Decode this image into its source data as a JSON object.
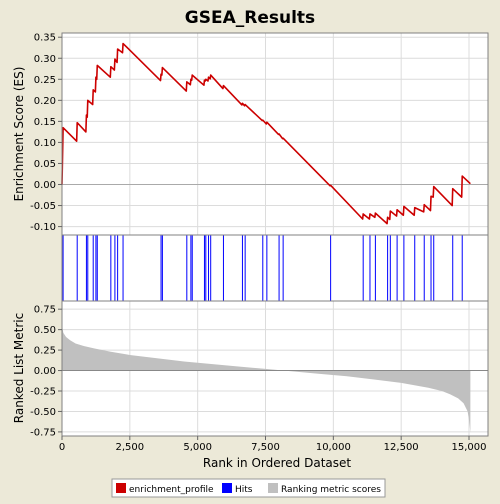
{
  "chart_data": {
    "type": "line",
    "title": "GSEA_Results",
    "xlabel": "Rank in Ordered Dataset",
    "panels": {
      "enrichment": {
        "ylabel": "Enrichment Score (ES)",
        "ylim": [
          -0.12,
          0.36
        ],
        "yticks": [
          -0.1,
          -0.05,
          0.0,
          0.05,
          0.1,
          0.15,
          0.2,
          0.25,
          0.3,
          0.35
        ],
        "ytick_labels": [
          "-0.10",
          "-0.05",
          "0.00",
          "0.05",
          "0.10",
          "0.15",
          "0.20",
          "0.25",
          "0.30",
          "0.35"
        ],
        "grid": true
      },
      "hits": {},
      "ranked": {
        "ylabel": "Ranked List Metric",
        "ylim": [
          -0.8,
          0.85
        ],
        "yticks": [
          -0.75,
          -0.5,
          -0.25,
          0.0,
          0.25,
          0.5,
          0.75
        ],
        "ytick_labels": [
          "-0.75",
          "-0.50",
          "-0.25",
          "0.00",
          "0.25",
          "0.50",
          "0.75"
        ],
        "grid": true
      }
    },
    "xlim": [
      0,
      15700
    ],
    "xticks": [
      0,
      2500,
      5000,
      7500,
      10000,
      12500,
      15000
    ],
    "xtick_labels": [
      "0",
      "2,500",
      "5,000",
      "7,500",
      "10,000",
      "12,500",
      "15,000"
    ],
    "hits": [
      40,
      560,
      900,
      950,
      1150,
      1250,
      1300,
      1800,
      1950,
      2050,
      2250,
      3650,
      3700,
      4600,
      4750,
      4800,
      5250,
      5300,
      5400,
      5480,
      5950,
      6650,
      6750,
      7400,
      7550,
      8000,
      8150,
      9900,
      11100,
      11350,
      11550,
      12000,
      12100,
      12350,
      12600,
      13000,
      13350,
      13600,
      13700,
      14400,
      14750
    ],
    "series": [
      {
        "name": "enrichment_profile",
        "color": "#cc0000",
        "x": [
          0,
          40,
          540,
          560,
          880,
          900,
          930,
          950,
          1130,
          1150,
          1230,
          1250,
          1280,
          1300,
          1780,
          1800,
          1930,
          1950,
          2030,
          2050,
          2230,
          2250,
          3630,
          3650,
          3680,
          3700,
          4580,
          4600,
          4730,
          4750,
          4780,
          4800,
          5230,
          5250,
          5280,
          5300,
          5380,
          5400,
          5460,
          5480,
          5930,
          5950,
          6630,
          6650,
          6730,
          6750,
          7380,
          7400,
          7530,
          7550,
          7980,
          8000,
          8130,
          8150,
          9880,
          9900,
          11080,
          11100,
          11330,
          11350,
          11530,
          11550,
          11980,
          12000,
          12080,
          12100,
          12330,
          12350,
          12580,
          12600,
          12980,
          13000,
          13330,
          13350,
          13580,
          13600,
          13680,
          13700,
          14380,
          14400,
          14730,
          14750,
          15050
        ],
        "y": [
          0.0,
          0.135,
          0.103,
          0.147,
          0.125,
          0.165,
          0.16,
          0.2,
          0.19,
          0.225,
          0.22,
          0.255,
          0.25,
          0.283,
          0.255,
          0.28,
          0.272,
          0.298,
          0.29,
          0.322,
          0.313,
          0.335,
          0.247,
          0.262,
          0.26,
          0.278,
          0.222,
          0.244,
          0.237,
          0.25,
          0.248,
          0.26,
          0.236,
          0.248,
          0.246,
          0.25,
          0.246,
          0.255,
          0.251,
          0.26,
          0.228,
          0.235,
          0.189,
          0.193,
          0.187,
          0.19,
          0.152,
          0.153,
          0.144,
          0.148,
          0.119,
          0.12,
          0.109,
          0.11,
          -0.003,
          -0.002,
          -0.082,
          -0.07,
          -0.082,
          -0.07,
          -0.078,
          -0.068,
          -0.093,
          -0.078,
          -0.083,
          -0.063,
          -0.075,
          -0.06,
          -0.073,
          -0.052,
          -0.073,
          -0.055,
          -0.065,
          -0.048,
          -0.062,
          -0.028,
          -0.03,
          -0.005,
          -0.05,
          -0.01,
          -0.03,
          0.02,
          0.002
        ]
      },
      {
        "name": "Hits",
        "color": "#0000ff"
      },
      {
        "name": "Ranking metric scores",
        "color": "#c0c0c0",
        "x": [
          0,
          50,
          150,
          300,
          500,
          800,
          1200,
          1800,
          2500,
          3500,
          4500,
          5500,
          6500,
          7500,
          8500,
          9500,
          10500,
          11500,
          12500,
          13500,
          14000,
          14300,
          14600,
          14800,
          14950,
          15020,
          15050
        ],
        "y": [
          0.55,
          0.46,
          0.41,
          0.37,
          0.33,
          0.3,
          0.27,
          0.23,
          0.19,
          0.15,
          0.11,
          0.08,
          0.05,
          0.02,
          -0.01,
          -0.04,
          -0.07,
          -0.11,
          -0.15,
          -0.21,
          -0.25,
          -0.29,
          -0.34,
          -0.4,
          -0.5,
          -0.65,
          -0.76
        ]
      }
    ],
    "legend": {
      "placement": "bottom",
      "entries": [
        "enrichment_profile",
        "Hits",
        "Ranking metric scores"
      ]
    }
  }
}
